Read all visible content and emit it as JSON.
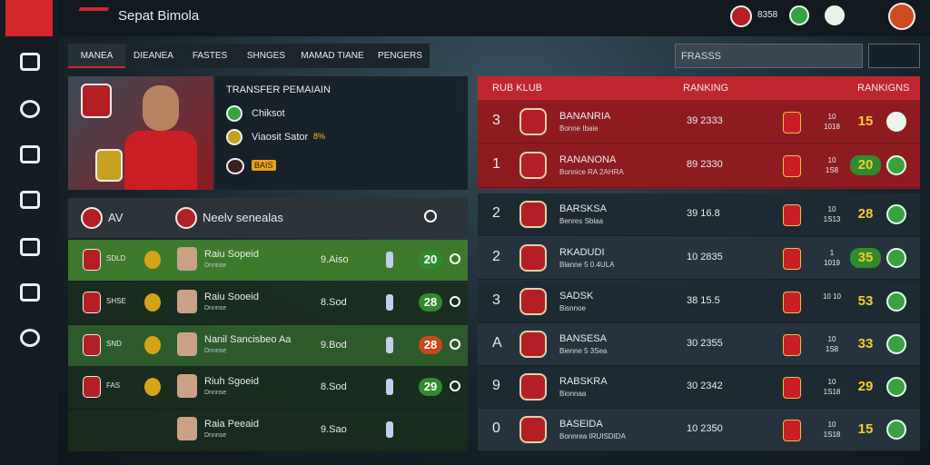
{
  "header": {
    "brand": "Sepat Bimola",
    "score": "8358"
  },
  "tabs": [
    "MANEA",
    "DIEANEA",
    "FASTES",
    "SHNGES",
    "MAMAD TIANE",
    "PENGERS"
  ],
  "search": "FRASSS",
  "transfer": {
    "title": "TRANSFER PEMAIAIN",
    "lines": [
      "Chiksot",
      "Viaosit Sator"
    ],
    "badge": "8%",
    "chip": "BAIS"
  },
  "players": {
    "header": [
      "AV",
      "Neelv senealas"
    ],
    "rows": [
      {
        "club": "SDLD",
        "name": "Raiu Sopeid",
        "sub": "Dnnnse",
        "value": "9.Aiso",
        "score": "20"
      },
      {
        "club": "SHSE",
        "name": "Raiu Sooeid",
        "sub": "Dnnnse",
        "value": "8.Sod",
        "score": "28"
      },
      {
        "club": "SND",
        "name": "Nanil Sancisbeo Aa",
        "sub": "Dnnnse",
        "value": "9.Bod",
        "score": "28"
      },
      {
        "club": "FAS",
        "name": "Riuh Sgoeid",
        "sub": "Dnnnse",
        "value": "8.Sod",
        "score": "29"
      },
      {
        "name": "Raia Peeaid",
        "sub": "Dnnnse",
        "value": "9.Sao"
      }
    ]
  },
  "clubs": {
    "header": [
      "RUB KLUB",
      "RANKING",
      "RANKIGNS"
    ],
    "rows": [
      {
        "rank": "3",
        "name": "BANANRIA",
        "sub": "Bonne Ibaie",
        "ranking": "39 2333",
        "points": "10 1018",
        "score": "15"
      },
      {
        "rank": "1",
        "name": "RANANONA",
        "sub": "Bonnice RA 2AHRA",
        "ranking": "89 2330",
        "points": "10 1S8",
        "score": "20"
      },
      {
        "rank": "2",
        "name": "BARSKSA",
        "sub": "Benres Sblaa",
        "ranking": "39 16.8",
        "points": "10 1S13",
        "score": "28"
      },
      {
        "rank": "2",
        "name": "RKADUDI",
        "sub": "Blanne 5 0.4ULA",
        "ranking": "10 2835",
        "points": "1 1019",
        "score": "35"
      },
      {
        "rank": "3",
        "name": "SADSK",
        "sub": "Bisnnoe",
        "ranking": "38 15.5",
        "points": "10 10",
        "score": "53"
      },
      {
        "rank": "A",
        "name": "BANSESA",
        "sub": "Bienne 5 3Sea",
        "ranking": "30 2355",
        "points": "10 1S8",
        "score": "33"
      },
      {
        "rank": "9",
        "name": "RABSKRA",
        "sub": "Bionnaa",
        "ranking": "30 2342",
        "points": "10 1S18",
        "score": "29"
      },
      {
        "rank": "0",
        "name": "BASEIDA",
        "sub": "Bonnrea IRUISDIDA",
        "ranking": "10 2350",
        "points": "10 1S18",
        "score": "15"
      }
    ]
  }
}
